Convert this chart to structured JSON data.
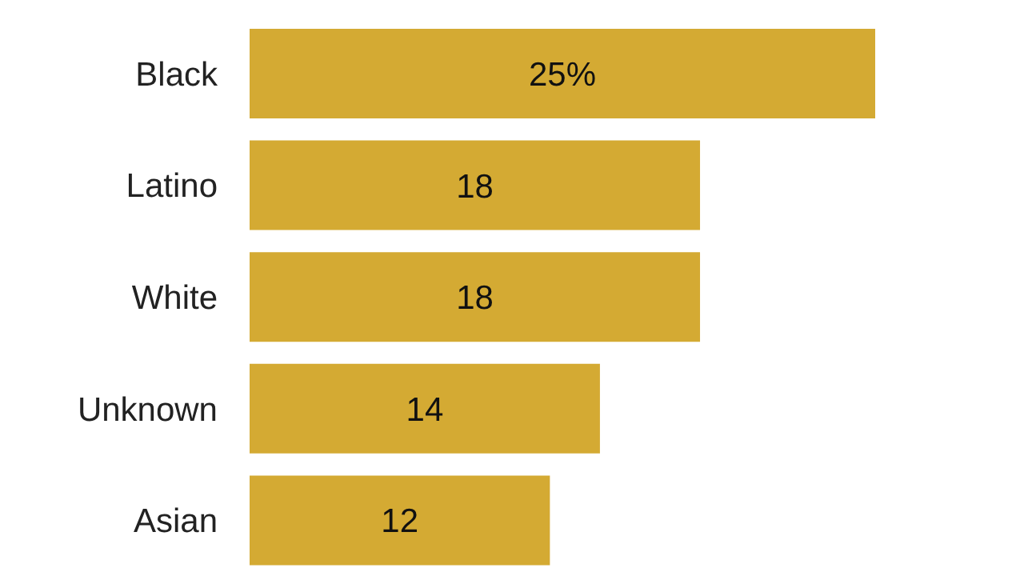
{
  "chart_data": {
    "type": "bar",
    "orientation": "horizontal",
    "categories": [
      "Black",
      "Latino",
      "White",
      "Unknown",
      "Asian"
    ],
    "values": [
      25,
      18,
      18,
      14,
      12
    ],
    "value_labels": [
      "25%",
      "18",
      "18",
      "14",
      "12"
    ],
    "color": "#d4aa33",
    "grid": false,
    "legend": false
  }
}
